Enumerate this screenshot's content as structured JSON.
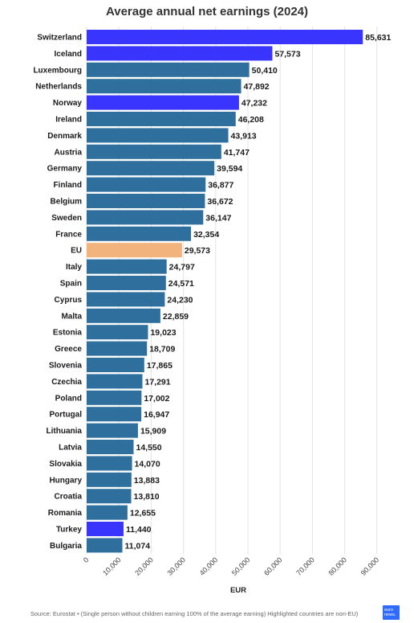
{
  "chart_data": {
    "type": "bar",
    "orientation": "horizontal",
    "title": "Average annual net earnings (2024)",
    "xlabel": "EUR",
    "ylabel": "",
    "xlim": [
      0,
      95000
    ],
    "x_ticks": [
      0,
      10000,
      20000,
      30000,
      40000,
      50000,
      60000,
      70000,
      80000,
      90000
    ],
    "x_tick_labels": [
      "0",
      "10,000",
      "20,000",
      "30,000",
      "40,000",
      "50,000",
      "60,000",
      "70,000",
      "80,000",
      "90,000"
    ],
    "grid": true,
    "categories": [
      "Switzerland",
      "Iceland",
      "Luxembourg",
      "Netherlands",
      "Norway",
      "Ireland",
      "Denmark",
      "Austria",
      "Germany",
      "Finland",
      "Belgium",
      "Sweden",
      "France",
      "EU",
      "Italy",
      "Spain",
      "Cyprus",
      "Malta",
      "Estonia",
      "Greece",
      "Slovenia",
      "Czechia",
      "Poland",
      "Portugal",
      "Lithuania",
      "Latvia",
      "Slovakia",
      "Hungary",
      "Croatia",
      "Romania",
      "Turkey",
      "Bulgaria"
    ],
    "values": [
      85631,
      57573,
      50410,
      47892,
      47232,
      46208,
      43913,
      41747,
      39594,
      36877,
      36672,
      36147,
      32354,
      29573,
      24797,
      24571,
      24230,
      22859,
      19023,
      18709,
      17865,
      17291,
      17002,
      16947,
      15909,
      14550,
      14070,
      13883,
      13810,
      12655,
      11440,
      11074
    ],
    "value_labels": [
      "85,631",
      "57,573",
      "50,410",
      "47,892",
      "47,232",
      "46,208",
      "43,913",
      "41,747",
      "39,594",
      "36,877",
      "36,672",
      "36,147",
      "32,354",
      "29,573",
      "24,797",
      "24,571",
      "24,230",
      "22,859",
      "19,023",
      "18,709",
      "17,865",
      "17,291",
      "17,002",
      "16,947",
      "15,909",
      "14,550",
      "14,070",
      "13,883",
      "13,810",
      "12,655",
      "11,440",
      "11,074"
    ],
    "bar_types": [
      "non_eu",
      "non_eu",
      "eu_member",
      "eu_member",
      "non_eu",
      "eu_member",
      "eu_member",
      "eu_member",
      "eu_member",
      "eu_member",
      "eu_member",
      "eu_member",
      "eu_member",
      "eu_average",
      "eu_member",
      "eu_member",
      "eu_member",
      "eu_member",
      "eu_member",
      "eu_member",
      "eu_member",
      "eu_member",
      "eu_member",
      "eu_member",
      "eu_member",
      "eu_member",
      "eu_member",
      "eu_member",
      "eu_member",
      "eu_member",
      "non_eu",
      "eu_member"
    ],
    "colors": {
      "eu_member": "#2e6f9e",
      "non_eu": "#3a34ff",
      "eu_average": "#f2b47c",
      "grid": "#e3e3e3"
    }
  },
  "footer": {
    "source": "Source: Eurostat • (Single person without children earning 100% of the average earning) Highlighted countries are non-EU)",
    "logo_text": "euro news."
  }
}
